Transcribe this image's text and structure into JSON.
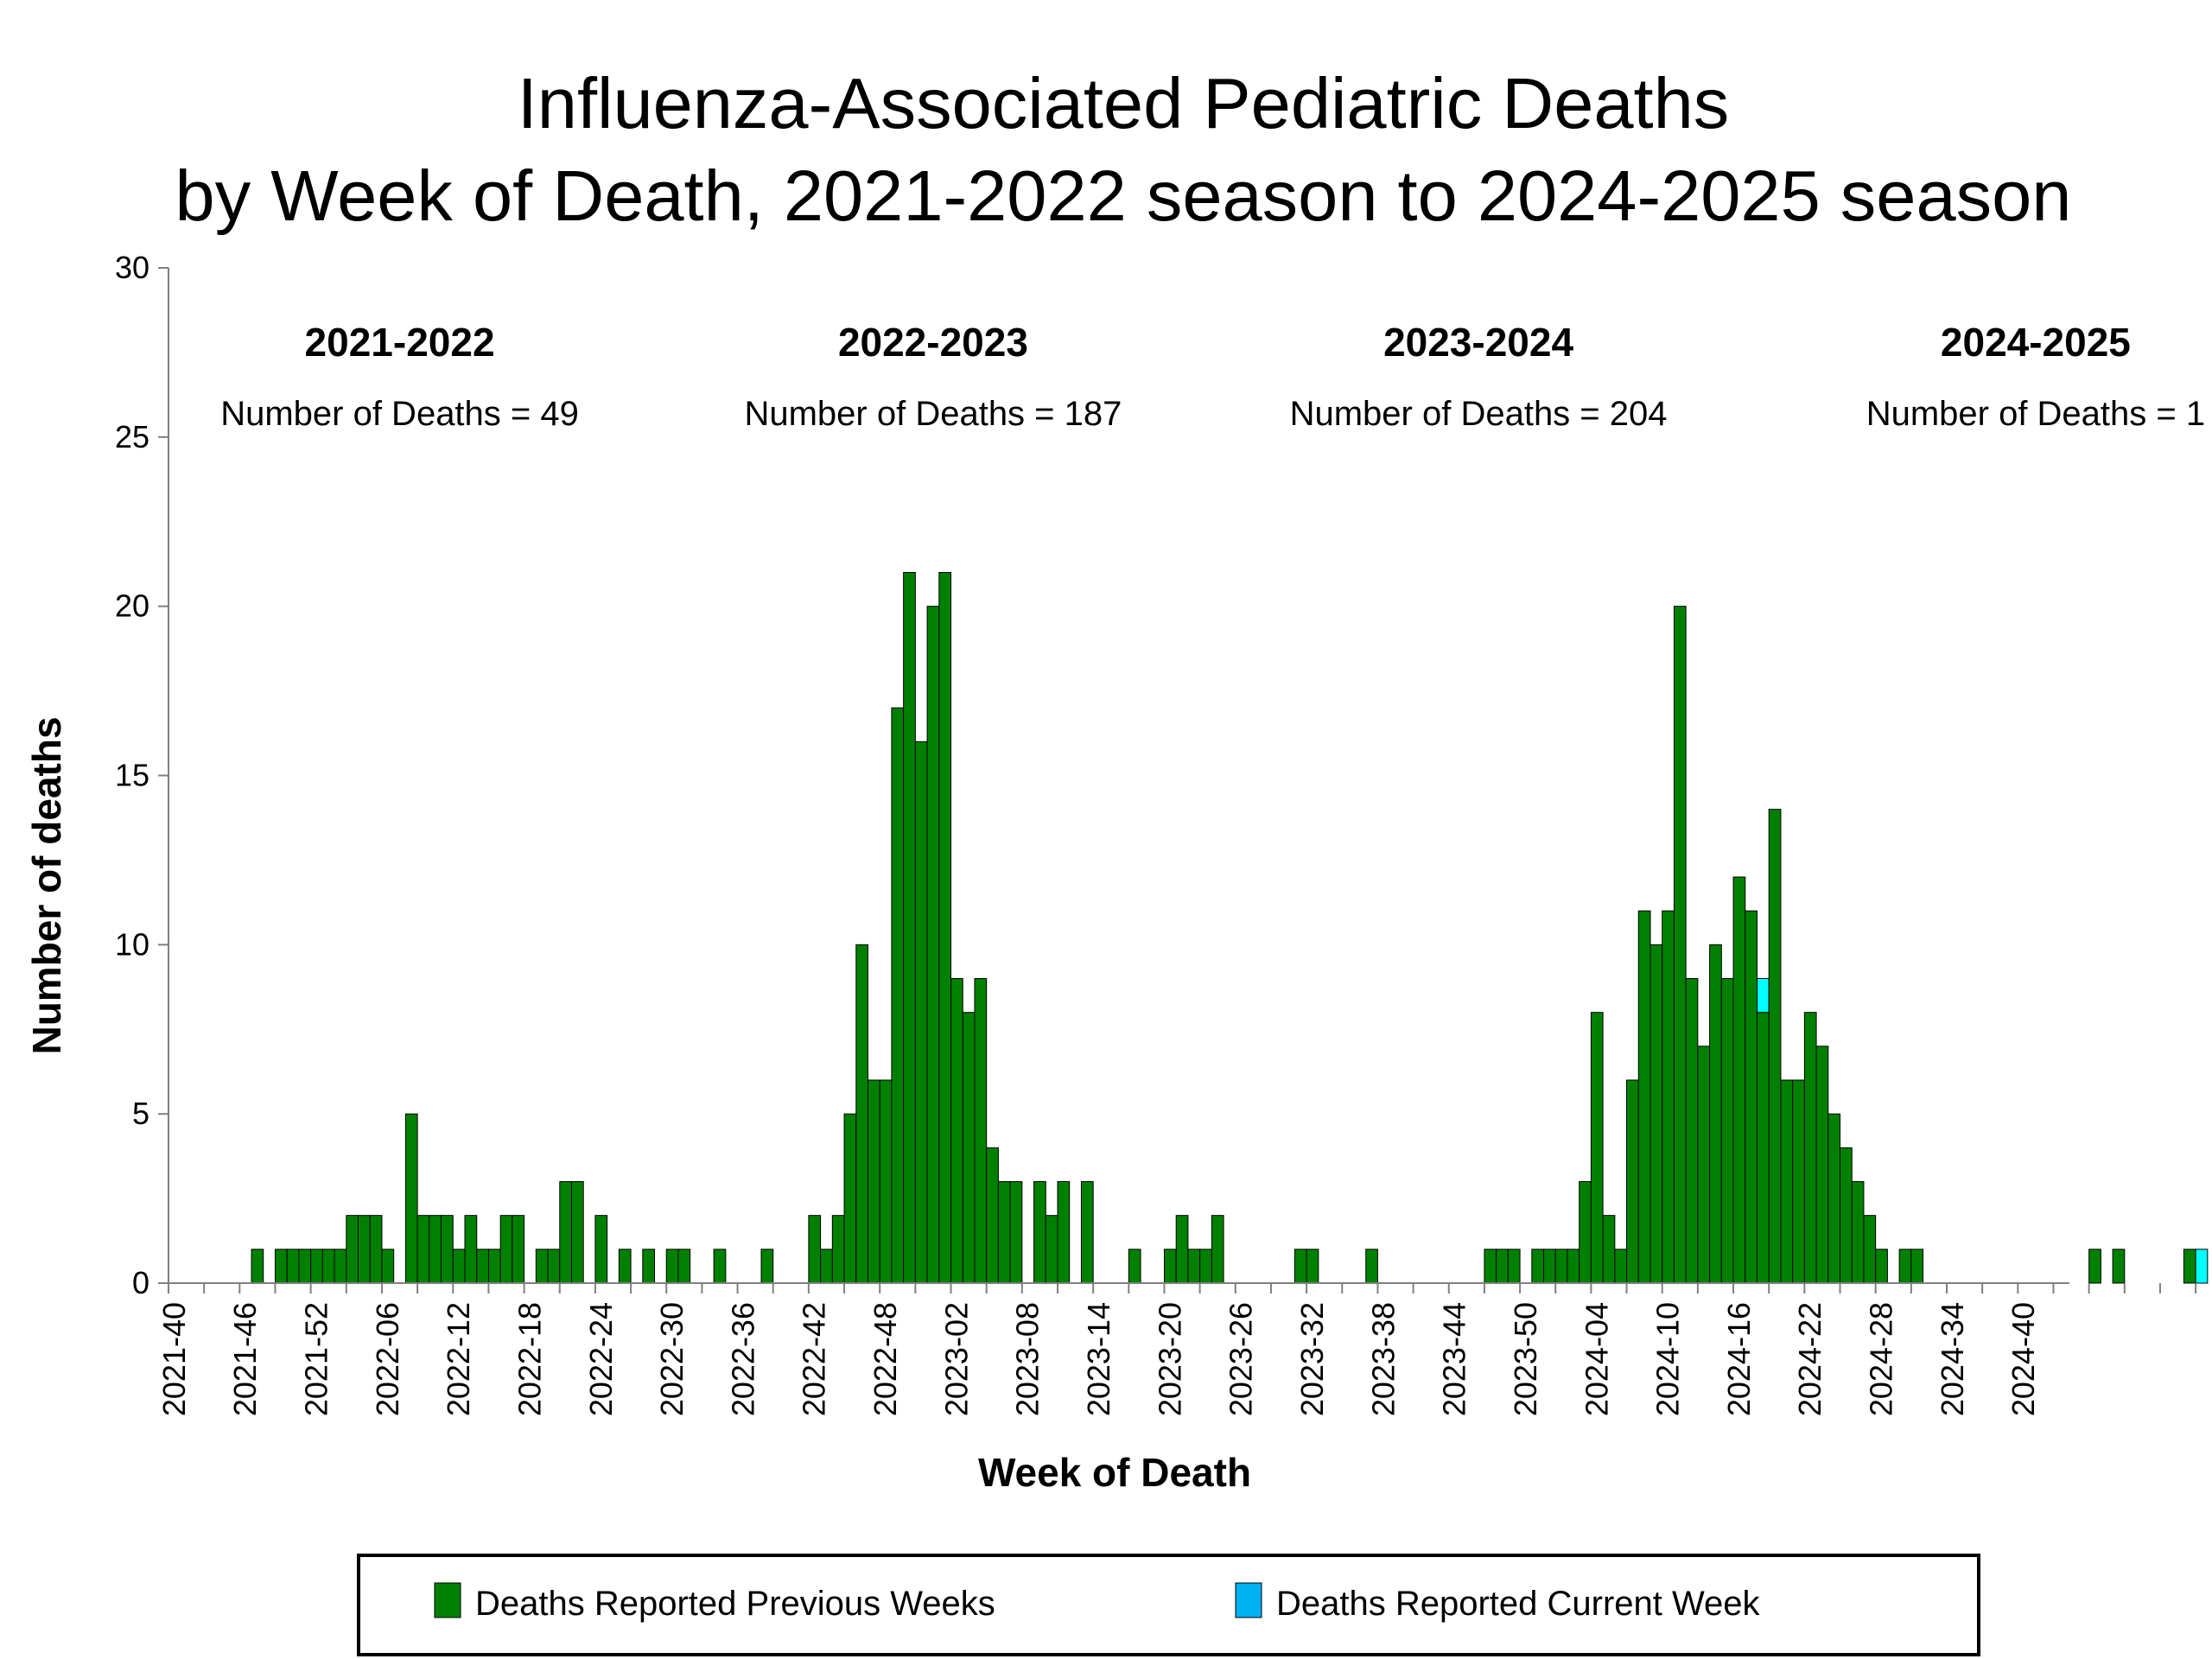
{
  "chart_data": {
    "type": "bar",
    "title_line1": "Influenza-Associated Pediatric Deaths",
    "title_line2": "by Week of Death, 2021-2022 season to 2024-2025 season",
    "xlabel": "Week of Death",
    "ylabel": "Number of deaths",
    "ylim": [
      0,
      30
    ],
    "yticks": [
      "0",
      "5",
      "10",
      "15",
      "20",
      "25",
      "30"
    ],
    "xtick_labels": [
      "2021-40",
      "2021-46",
      "2021-52",
      "2022-06",
      "2022-12",
      "2022-18",
      "2022-24",
      "2022-30",
      "2022-36",
      "2022-42",
      "2022-48",
      "2023-02",
      "2023-08",
      "2023-14",
      "2023-20",
      "2023-26",
      "2023-32",
      "2023-38",
      "2023-44",
      "2023-50",
      "2024-04",
      "2024-10",
      "2024-16",
      "2024-22",
      "2024-28",
      "2024-34",
      "2024-40"
    ],
    "tick_every": 6,
    "grid": false,
    "legend_position": "bottom",
    "colors": {
      "previous": "#008000",
      "current": "#00FFFF",
      "legend_current": "#00B0F0"
    },
    "seasons": [
      {
        "name": "2021-2022",
        "count_text": "Number of Deaths = 49",
        "center_week_index": 19
      },
      {
        "name": "2022-2023",
        "count_text": "Number of Deaths = 187",
        "center_week_index": 64
      },
      {
        "name": "2023-2024",
        "count_text": "Number of Deaths = 204",
        "center_week_index": 110
      },
      {
        "name": "2024-2025",
        "count_text": "Number of Deaths = 1",
        "center_week_index": 157
      }
    ],
    "series": [
      {
        "name": "Deaths Reported Previous Weeks",
        "color": "#008000",
        "values": [
          0,
          0,
          0,
          0,
          0,
          0,
          0,
          1,
          0,
          1,
          1,
          1,
          1,
          1,
          1,
          2,
          2,
          2,
          1,
          0,
          5,
          2,
          2,
          2,
          1,
          2,
          1,
          1,
          2,
          2,
          0,
          1,
          1,
          3,
          3,
          0,
          2,
          0,
          1,
          0,
          1,
          0,
          1,
          1,
          0,
          0,
          1,
          0,
          0,
          0,
          1,
          0,
          0,
          0,
          2,
          1,
          2,
          5,
          10,
          6,
          6,
          17,
          21,
          16,
          20,
          21,
          9,
          8,
          9,
          4,
          3,
          3,
          0,
          3,
          2,
          3,
          0,
          3,
          0,
          0,
          0,
          1,
          0,
          0,
          1,
          2,
          1,
          1,
          2,
          0,
          0,
          0,
          0,
          0,
          0,
          1,
          1,
          0,
          0,
          0,
          0,
          1,
          0,
          0,
          0,
          0,
          0,
          0,
          0,
          0,
          0,
          1,
          1,
          1,
          0,
          1,
          1,
          1,
          1,
          3,
          8,
          2,
          1,
          6,
          11,
          10,
          11,
          20,
          9,
          7,
          10,
          9,
          12,
          11,
          8,
          14,
          6,
          6,
          8,
          7,
          5,
          4,
          3,
          2,
          1,
          0,
          1,
          1,
          0,
          0,
          0,
          0,
          0,
          0,
          0,
          0,
          0,
          0,
          0,
          0,
          0,
          0,
          1,
          0,
          1,
          0,
          0,
          0,
          0,
          0,
          1,
          0,
          0
        ]
      },
      {
        "name": "Deaths Reported Current Week",
        "color": "#00FFFF",
        "values": [
          0,
          0,
          0,
          0,
          0,
          0,
          0,
          0,
          0,
          0,
          0,
          0,
          0,
          0,
          0,
          0,
          0,
          0,
          0,
          0,
          0,
          0,
          0,
          0,
          0,
          0,
          0,
          0,
          0,
          0,
          0,
          0,
          0,
          0,
          0,
          0,
          0,
          0,
          0,
          0,
          0,
          0,
          0,
          0,
          0,
          0,
          0,
          0,
          0,
          0,
          0,
          0,
          0,
          0,
          0,
          0,
          0,
          0,
          0,
          0,
          0,
          0,
          0,
          0,
          0,
          0,
          0,
          0,
          0,
          0,
          0,
          0,
          0,
          0,
          0,
          0,
          0,
          0,
          0,
          0,
          0,
          0,
          0,
          0,
          0,
          0,
          0,
          0,
          0,
          0,
          0,
          0,
          0,
          0,
          0,
          0,
          0,
          0,
          0,
          0,
          0,
          0,
          0,
          0,
          0,
          0,
          0,
          0,
          0,
          0,
          0,
          0,
          0,
          0,
          0,
          0,
          0,
          0,
          0,
          0,
          0,
          0,
          0,
          0,
          0,
          0,
          0,
          0,
          0,
          0,
          0,
          0,
          0,
          0,
          1,
          0,
          0,
          0,
          0,
          0,
          0,
          0,
          0,
          0,
          0,
          0,
          0,
          0,
          0,
          0,
          0,
          0,
          0,
          0,
          0,
          0,
          0,
          0,
          0,
          0,
          0,
          0,
          0,
          0,
          0,
          0,
          0,
          0,
          0,
          0,
          0,
          1,
          0
        ]
      }
    ],
    "legend": [
      {
        "label": "Deaths Reported Previous Weeks",
        "color": "#008000"
      },
      {
        "label": "Deaths Reported Current Week",
        "color": "#00B0F0"
      }
    ]
  }
}
